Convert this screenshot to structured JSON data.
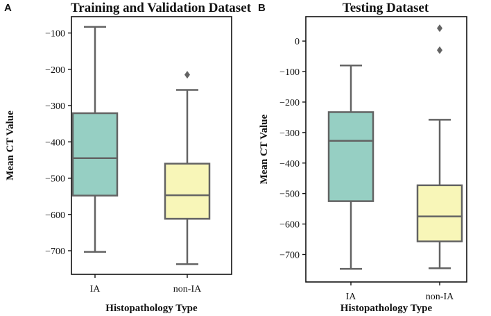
{
  "chart_data": [
    {
      "type": "box",
      "panel_label": "A",
      "title": "Training and Validation Dataset",
      "xlabel": "Histopathology Type",
      "ylabel": "Mean CT Value",
      "ylim": [
        -765,
        -55
      ],
      "yticks": [
        -100,
        -200,
        -300,
        -400,
        -500,
        -600,
        -700
      ],
      "yticklabels": [
        "−100",
        "−200",
        "−300",
        "−400",
        "−500",
        "−600",
        "−700"
      ],
      "categories": [
        "IA",
        "non-IA"
      ],
      "boxes": [
        {
          "name": "IA",
          "whisker_low": -703,
          "q1": -548,
          "median": -445,
          "q3": -321,
          "whisker_high": -83,
          "outliers": [],
          "color": "#96cfc3"
        },
        {
          "name": "non-IA",
          "whisker_low": -737,
          "q1": -612,
          "median": -547,
          "q3": -460,
          "whisker_high": -257,
          "outliers": [
            -215
          ],
          "color": "#f8f6b8"
        }
      ]
    },
    {
      "type": "box",
      "panel_label": "B",
      "title": "Testing Dataset",
      "xlabel": "Histopathology Type",
      "ylabel": "Mean CT Value",
      "ylim": [
        -790,
        80
      ],
      "yticks": [
        0,
        -100,
        -200,
        -300,
        -400,
        -500,
        -600,
        -700
      ],
      "yticklabels": [
        "0",
        "−100",
        "−200",
        "−300",
        "−400",
        "−500",
        "−600",
        "−700"
      ],
      "categories": [
        "IA",
        "non-IA"
      ],
      "boxes": [
        {
          "name": "IA",
          "whisker_low": -747,
          "q1": -525,
          "median": -327,
          "q3": -233,
          "whisker_high": -80,
          "outliers": [],
          "color": "#96cfc3"
        },
        {
          "name": "non-IA",
          "whisker_low": -745,
          "q1": -657,
          "median": -575,
          "q3": -473,
          "whisker_high": -258,
          "outliers": [
            -30,
            42
          ],
          "color": "#f8f6b8"
        }
      ]
    }
  ],
  "style": {
    "line_color": "#636363",
    "outlier_color": "#636363"
  }
}
